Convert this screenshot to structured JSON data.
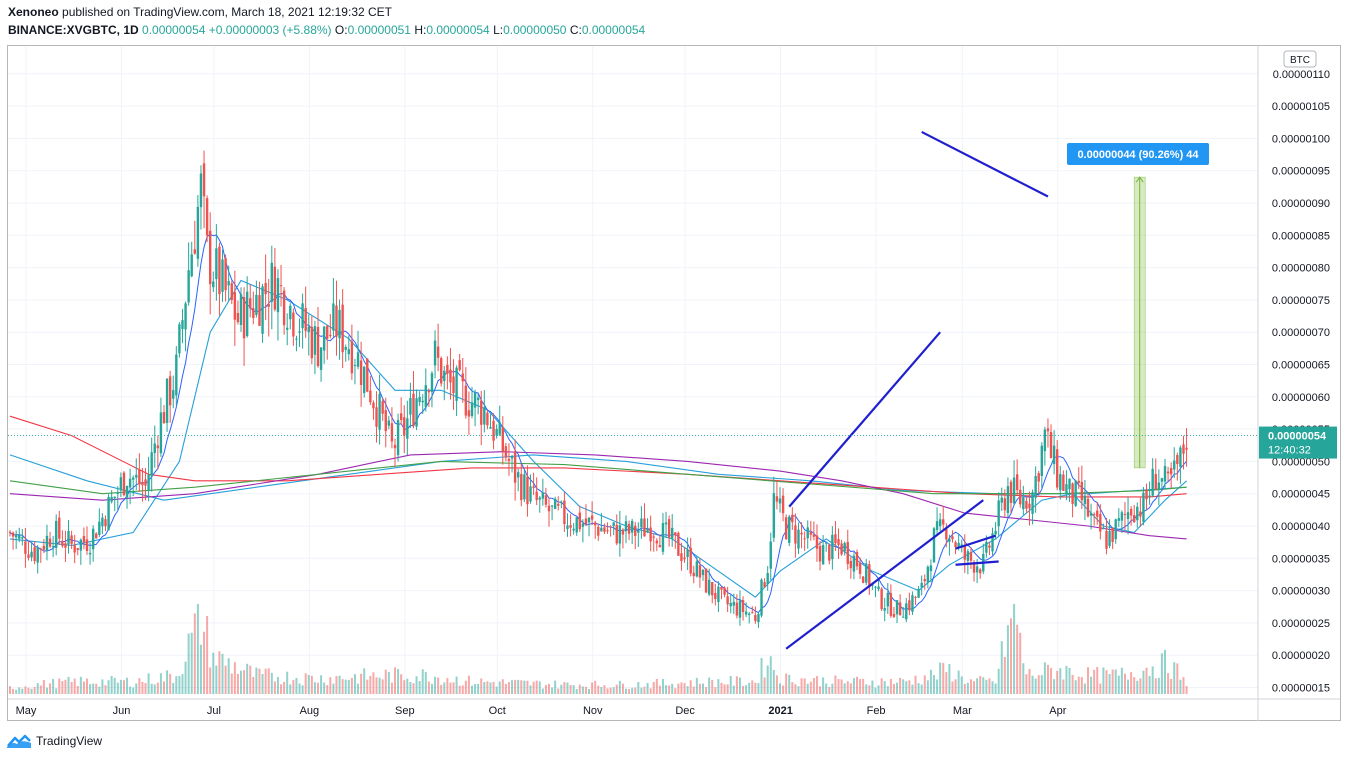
{
  "header": {
    "publisher": "Xenoneo",
    "published_text": "published on TradingView.com, March 18, 2021 12:19:32 CET",
    "symbol": "BINANCE:XVGBTC, 1D",
    "last": "0.00000054",
    "change": "+0.00000003 (+5.88%)",
    "open_label": "O:",
    "open": "0.00000051",
    "high_label": "H:",
    "high": "0.00000054",
    "low_label": "L:",
    "low": "0.00000050",
    "close_label": "C:",
    "close": "0.00000054"
  },
  "footer": {
    "brand": "TradingView"
  },
  "colors": {
    "up": "#26a69a",
    "down": "#ef5350",
    "sma_short": "#2962ff",
    "sma_light": "#26a0da",
    "ma_red": "#f23645",
    "ma_purple": "#9c27b0",
    "ma_green": "#43a047",
    "trend": "#1f1fd0"
  },
  "chart_data": {
    "type": "candlestick",
    "title": "BINANCE:XVGBTC, 1D",
    "currency_label": "BTC",
    "y_ticks": [
      "0.00000015",
      "0.00000020",
      "0.00000025",
      "0.00000030",
      "0.00000035",
      "0.00000040",
      "0.00000045",
      "0.00000050",
      "0.00000055",
      "0.00000060",
      "0.00000065",
      "0.00000070",
      "0.00000075",
      "0.00000080",
      "0.00000085",
      "0.00000090",
      "0.00000095",
      "0.00000100",
      "0.00000105",
      "0.00000110"
    ],
    "ylim_satoshi": [
      14,
      110
    ],
    "x_ticks": [
      "May",
      "Jun",
      "Jul",
      "Aug",
      "Sep",
      "Oct",
      "Nov",
      "Dec",
      "2021",
      "Feb",
      "Mar",
      "Apr"
    ],
    "last_price_label": "0.00000054",
    "countdown_label": "12:40:32",
    "measure_label": "0.00000044 (90.26%) 44",
    "close_path_satoshi": [
      [
        0,
        39
      ],
      [
        8,
        36
      ],
      [
        14,
        39
      ],
      [
        20,
        37
      ],
      [
        26,
        38
      ],
      [
        32,
        43
      ],
      [
        38,
        48
      ],
      [
        44,
        46
      ],
      [
        48,
        55
      ],
      [
        54,
        64
      ],
      [
        58,
        80
      ],
      [
        62,
        92
      ],
      [
        64,
        82
      ],
      [
        68,
        78
      ],
      [
        74,
        72
      ],
      [
        80,
        75
      ],
      [
        86,
        78
      ],
      [
        92,
        73
      ],
      [
        100,
        68
      ],
      [
        106,
        71
      ],
      [
        112,
        67
      ],
      [
        118,
        60
      ],
      [
        124,
        52
      ],
      [
        128,
        55
      ],
      [
        132,
        60
      ],
      [
        138,
        66
      ],
      [
        142,
        62
      ],
      [
        148,
        60
      ],
      [
        154,
        58
      ],
      [
        160,
        52
      ],
      [
        164,
        48
      ],
      [
        170,
        44
      ],
      [
        176,
        42
      ],
      [
        182,
        41
      ],
      [
        190,
        40
      ],
      [
        196,
        39
      ],
      [
        202,
        39
      ],
      [
        208,
        40
      ],
      [
        214,
        38
      ],
      [
        220,
        35
      ],
      [
        226,
        31
      ],
      [
        232,
        28
      ],
      [
        238,
        27
      ],
      [
        242,
        26
      ],
      [
        246,
        34
      ],
      [
        248,
        44
      ],
      [
        252,
        40
      ],
      [
        258,
        38
      ],
      [
        264,
        36
      ],
      [
        270,
        37
      ],
      [
        276,
        34
      ],
      [
        282,
        29
      ],
      [
        288,
        27
      ],
      [
        292,
        28
      ],
      [
        296,
        30
      ],
      [
        300,
        38
      ],
      [
        304,
        40
      ],
      [
        310,
        35
      ],
      [
        316,
        34
      ],
      [
        320,
        40
      ],
      [
        324,
        46
      ],
      [
        328,
        44
      ],
      [
        332,
        45
      ],
      [
        336,
        54
      ],
      [
        340,
        48
      ],
      [
        344,
        45
      ],
      [
        348,
        44
      ],
      [
        352,
        40
      ],
      [
        356,
        38
      ],
      [
        360,
        40
      ],
      [
        364,
        43
      ],
      [
        368,
        43
      ],
      [
        372,
        48
      ],
      [
        376,
        46
      ],
      [
        380,
        50
      ],
      [
        382,
        54
      ]
    ],
    "volume_path": [
      [
        0,
        1
      ],
      [
        8,
        1.5
      ],
      [
        22,
        2
      ],
      [
        40,
        2
      ],
      [
        54,
        3
      ],
      [
        60,
        10
      ],
      [
        62,
        12
      ],
      [
        66,
        6
      ],
      [
        80,
        3
      ],
      [
        100,
        2.5
      ],
      [
        122,
        3
      ],
      [
        136,
        3
      ],
      [
        150,
        2
      ],
      [
        180,
        1.5
      ],
      [
        200,
        1.5
      ],
      [
        230,
        2
      ],
      [
        242,
        2
      ],
      [
        246,
        6
      ],
      [
        250,
        2.5
      ],
      [
        270,
        2
      ],
      [
        290,
        2
      ],
      [
        300,
        3
      ],
      [
        304,
        4
      ],
      [
        312,
        2
      ],
      [
        320,
        2
      ],
      [
        326,
        14
      ],
      [
        330,
        3
      ],
      [
        340,
        4
      ],
      [
        350,
        3
      ],
      [
        360,
        3
      ],
      [
        368,
        4
      ],
      [
        376,
        5
      ],
      [
        380,
        3
      ],
      [
        382,
        1
      ]
    ],
    "moving_averages_satoshi": [
      {
        "name": "SMA-20",
        "color": "#26a0da",
        "points": [
          [
            0,
            38
          ],
          [
            20,
            37
          ],
          [
            40,
            39
          ],
          [
            55,
            50
          ],
          [
            65,
            70
          ],
          [
            75,
            78
          ],
          [
            90,
            75
          ],
          [
            110,
            69
          ],
          [
            125,
            61
          ],
          [
            140,
            61
          ],
          [
            155,
            58
          ],
          [
            170,
            50
          ],
          [
            185,
            43
          ],
          [
            200,
            40
          ],
          [
            215,
            38
          ],
          [
            230,
            33
          ],
          [
            242,
            29
          ],
          [
            250,
            33
          ],
          [
            265,
            38
          ],
          [
            280,
            33
          ],
          [
            295,
            30
          ],
          [
            305,
            34
          ],
          [
            320,
            38
          ],
          [
            335,
            44
          ],
          [
            345,
            45
          ],
          [
            355,
            40
          ],
          [
            365,
            39
          ],
          [
            375,
            44
          ],
          [
            382,
            47
          ]
        ]
      },
      {
        "name": "MA-long-1",
        "color": "#26a0da",
        "points": [
          [
            0,
            51
          ],
          [
            25,
            47
          ],
          [
            50,
            44
          ],
          [
            80,
            46
          ],
          [
            110,
            48
          ],
          [
            140,
            50
          ],
          [
            170,
            51
          ],
          [
            200,
            50
          ],
          [
            230,
            48
          ],
          [
            260,
            47
          ],
          [
            290,
            45.5
          ],
          [
            320,
            45
          ],
          [
            350,
            45
          ],
          [
            382,
            46
          ]
        ]
      },
      {
        "name": "MA-long-2",
        "color": "#f23645",
        "points": [
          [
            0,
            57
          ],
          [
            20,
            54
          ],
          [
            45,
            48
          ],
          [
            60,
            47
          ],
          [
            90,
            47
          ],
          [
            120,
            48
          ],
          [
            150,
            49
          ],
          [
            180,
            49
          ],
          [
            220,
            48
          ],
          [
            250,
            47
          ],
          [
            280,
            46
          ],
          [
            310,
            45
          ],
          [
            340,
            44.5
          ],
          [
            370,
            44.5
          ],
          [
            382,
            45
          ]
        ]
      },
      {
        "name": "MA-long-3",
        "color": "#9c27b0",
        "points": [
          [
            0,
            45
          ],
          [
            30,
            44
          ],
          [
            60,
            45
          ],
          [
            100,
            48
          ],
          [
            130,
            51
          ],
          [
            160,
            51.5
          ],
          [
            190,
            51
          ],
          [
            220,
            50
          ],
          [
            250,
            48.5
          ],
          [
            270,
            47
          ],
          [
            290,
            45
          ],
          [
            310,
            42
          ],
          [
            330,
            41
          ],
          [
            350,
            40
          ],
          [
            370,
            38.5
          ],
          [
            382,
            38
          ]
        ]
      },
      {
        "name": "MA-long-4",
        "color": "#43a047",
        "points": [
          [
            0,
            47
          ],
          [
            30,
            45
          ],
          [
            60,
            46
          ],
          [
            100,
            48
          ],
          [
            140,
            50
          ],
          [
            180,
            49.5
          ],
          [
            220,
            48
          ],
          [
            260,
            46.5
          ],
          [
            300,
            45
          ],
          [
            340,
            45
          ],
          [
            370,
            45.5
          ],
          [
            382,
            46
          ]
        ]
      }
    ],
    "annotations": {
      "channel_upper_satoshi": [
        [
          253,
          43
        ],
        [
          302,
          70
        ]
      ],
      "channel_lower_satoshi": [
        [
          252,
          21
        ],
        [
          316,
          44
        ]
      ],
      "wedge_lower_satoshi": [
        [
          307,
          36.5
        ],
        [
          320,
          38.5
        ]
      ],
      "short_line_satoshi": [
        [
          307,
          34
        ],
        [
          321,
          34.5
        ]
      ],
      "top_resistance_satoshi": [
        [
          296,
          101
        ],
        [
          337,
          91
        ]
      ],
      "measure_range_satoshi": [
        49,
        94
      ]
    }
  }
}
